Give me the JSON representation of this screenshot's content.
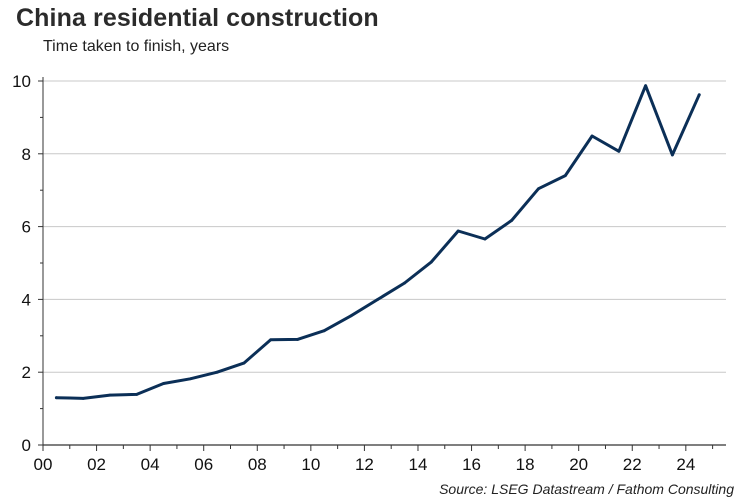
{
  "title": "China residential construction",
  "subtitle": "Time taken to finish, years",
  "source": "Source: LSEG Datastream / Fathom Consulting",
  "colors": {
    "line": "#0b2f57",
    "grid": "#c8c8c8",
    "axis": "#333333"
  },
  "chart_data": {
    "type": "line",
    "title": "China residential construction",
    "subtitle": "Time taken to finish, years",
    "xlabel": "",
    "ylabel": "",
    "xlim": [
      0,
      25.5
    ],
    "ylim": [
      0,
      10
    ],
    "x_tick_labels": [
      "00",
      "02",
      "04",
      "06",
      "08",
      "10",
      "12",
      "14",
      "16",
      "18",
      "20",
      "22",
      "24"
    ],
    "x_tick_values": [
      0,
      2,
      4,
      6,
      8,
      10,
      12,
      14,
      16,
      18,
      20,
      22,
      24
    ],
    "y_tick_labels": [
      "0",
      "2",
      "4",
      "6",
      "8",
      "10"
    ],
    "y_tick_values": [
      0,
      2,
      4,
      6,
      8,
      10
    ],
    "grid": "horizontal",
    "legend": "none",
    "series": [
      {
        "x": [
          0.5,
          1,
          1.5,
          2.5,
          3.5,
          4.5,
          5.5,
          6.5,
          7.5,
          8.5,
          9.5,
          10.5,
          11.5,
          12.5,
          13.5,
          14.5,
          15.5,
          16.5,
          17.5,
          18.5,
          19.5,
          20.5,
          21.5,
          22.5,
          23.5,
          24.5
        ],
        "values": [
          1.3,
          1.29,
          1.28,
          1.37,
          1.39,
          1.69,
          1.82,
          2.0,
          2.25,
          2.89,
          2.9,
          3.14,
          3.55,
          4.0,
          4.45,
          5.03,
          5.88,
          5.66,
          6.17,
          7.04,
          7.4,
          8.49,
          8.07,
          9.87,
          7.97,
          9.62
        ]
      }
    ]
  }
}
